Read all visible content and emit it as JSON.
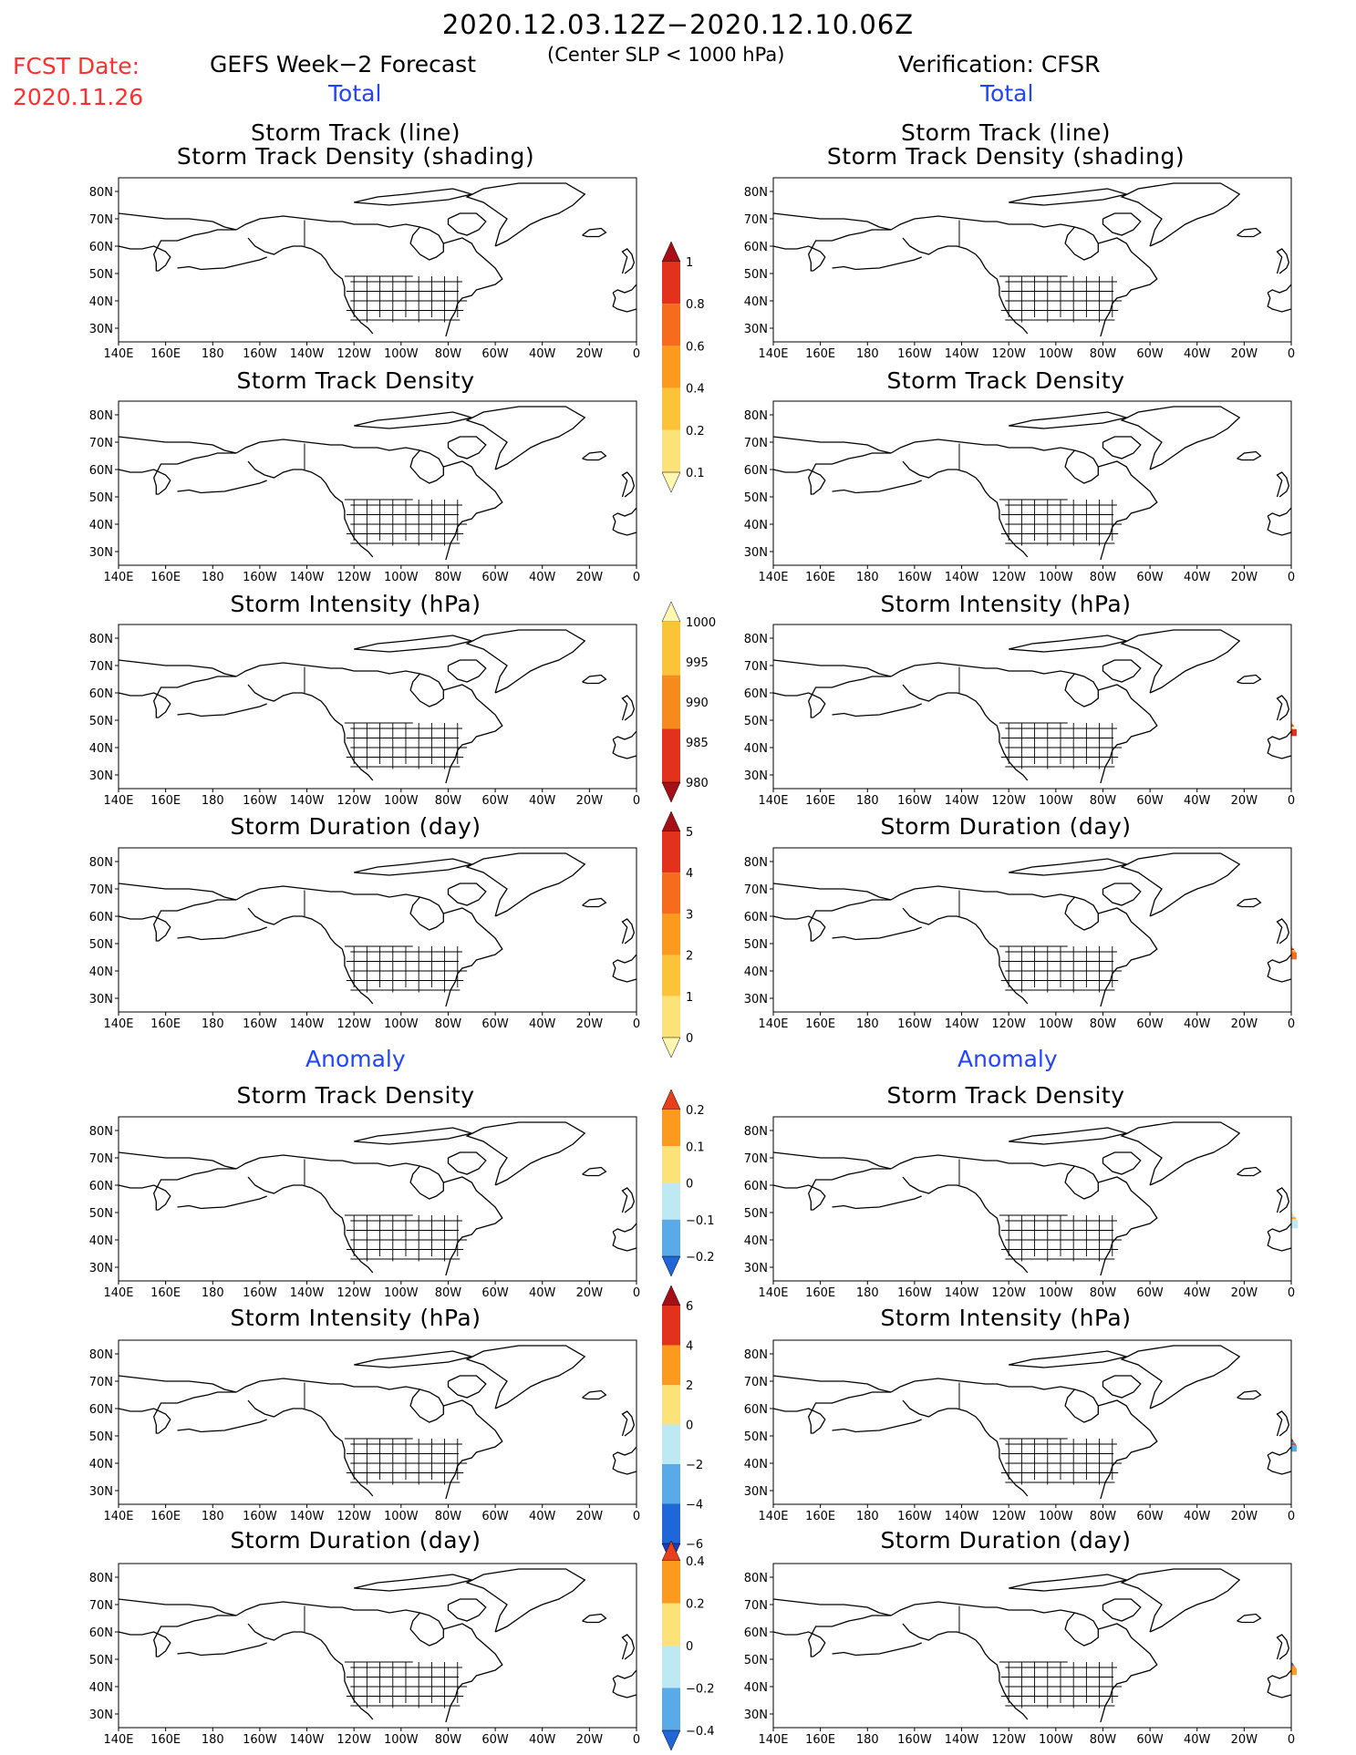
{
  "header": {
    "period": "2020.12.03.12Z−2020.12.10.06Z",
    "subtitle": "(Center SLP < 1000 hPa)",
    "fcst_label": "FCST Date:",
    "fcst_date": "2020.11.26",
    "left_title": "GEFS Week−2 Forecast",
    "right_title": "Verification: CFSR",
    "total_left": "Total",
    "total_right": "Total",
    "anomaly_left": "Anomaly",
    "anomaly_right": "Anomaly"
  },
  "panel_titles": {
    "track_line": "Storm Track (line)",
    "track_shading": "Storm Track Density (shading)",
    "density": "Storm Track Density",
    "intensity": "Storm Intensity (hPa)",
    "duration": "Storm Duration (day)"
  },
  "axes": {
    "lon_labels": [
      "140E",
      "160E",
      "180",
      "160W",
      "140W",
      "120W",
      "100W",
      "80W",
      "60W",
      "40W",
      "20W",
      "0"
    ],
    "lat_labels": [
      "80N",
      "70N",
      "60N",
      "50N",
      "40N",
      "30N"
    ]
  },
  "colorbars": {
    "density_total": {
      "labels": [
        "1",
        "0.8",
        "0.6",
        "0.4",
        "0.2",
        "0.1"
      ],
      "colors": [
        "#a50f15",
        "#e2321c",
        "#f76b1c",
        "#fb9a1e",
        "#fcc33a",
        "#fde27a",
        "#fff6b0"
      ]
    },
    "intensity_total": {
      "labels": [
        "1000",
        "995",
        "990",
        "985",
        "980"
      ],
      "colors": [
        "#fff6b0",
        "#fcc33a",
        "#f78a1c",
        "#e2321c",
        "#a50f15"
      ]
    },
    "duration_total": {
      "labels": [
        "5",
        "4",
        "3",
        "2",
        "1",
        "0"
      ],
      "colors": [
        "#a50f15",
        "#e2321c",
        "#f76b1c",
        "#fb9a1e",
        "#fcc33a",
        "#fde27a",
        "#fff6b0"
      ]
    },
    "density_anom": {
      "labels": [
        "0.2",
        "0.1",
        "0",
        "−0.1",
        "−0.2"
      ],
      "colors": [
        "#e8401c",
        "#fb9a1e",
        "#fde27a",
        "#bfe8f5",
        "#5aaae8",
        "#1f66d8"
      ]
    },
    "intensity_anom": {
      "labels": [
        "6",
        "4",
        "2",
        "0",
        "−2",
        "−4",
        "−6"
      ],
      "colors": [
        "#a50f15",
        "#e2321c",
        "#fb9a1e",
        "#fde27a",
        "#bfe8f5",
        "#5aaae8",
        "#1f66d8",
        "#1a3fc0"
      ]
    },
    "duration_anom": {
      "labels": [
        "0.4",
        "0.2",
        "0",
        "−0.2",
        "−0.4"
      ],
      "colors": [
        "#e8401c",
        "#fb9a1e",
        "#fde27a",
        "#bfe8f5",
        "#5aaae8",
        "#1f66d8"
      ]
    }
  },
  "colors": {
    "track_line": "#2aa6e0",
    "title_red": "#ff3030",
    "title_blue": "#2244ff"
  }
}
